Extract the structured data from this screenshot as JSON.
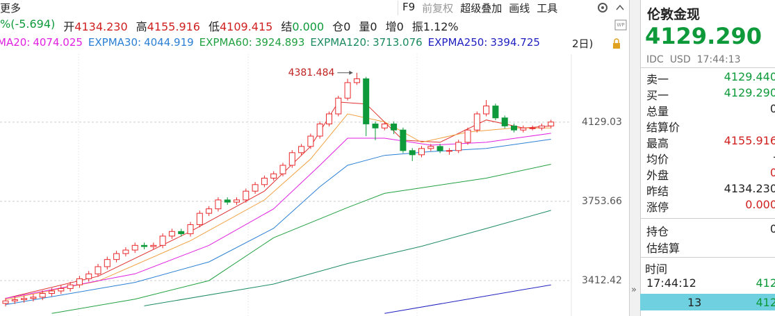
{
  "toolbar": {
    "more": "更多",
    "items": [
      "F9",
      "前复权",
      "超级叠加",
      "画线",
      "工具"
    ]
  },
  "quote": [
    {
      "value": "%(-5.694)"
    },
    {
      "label": "开",
      "value": "4134.230"
    },
    {
      "label": "高",
      "value": "4155.916"
    },
    {
      "label": "低",
      "value": "4109.415"
    },
    {
      "label": "结",
      "value": "0.000"
    },
    {
      "label": "仓",
      "value": "0"
    },
    {
      "label": "量",
      "value": "0"
    },
    {
      "label": "增",
      "value": "0"
    },
    {
      "label": "振",
      "value": "1.12%"
    }
  ],
  "legend_tail": "2日)",
  "chart_data": {
    "type": "candlestick",
    "open": [
      3320,
      3330,
      3335,
      3340,
      3345,
      3360,
      3370,
      3380,
      3395,
      3420,
      3440,
      3470,
      3500,
      3525,
      3540,
      3560,
      3555,
      3560,
      3600,
      3620,
      3610,
      3650,
      3700,
      3720,
      3760,
      3750,
      3760,
      3800,
      3830,
      3860,
      3880,
      3920,
      3980,
      4010,
      4060,
      4120,
      4170,
      4250,
      4330,
      4350,
      4120,
      4100,
      4120,
      4090,
      3990,
      3970,
      4000,
      4010,
      3990,
      3990,
      4030,
      4090,
      4170,
      4210,
      4150,
      4110,
      4090,
      4100,
      4100,
      4110
    ],
    "high": [
      3342,
      3347,
      3352,
      3357,
      3372,
      3382,
      3392,
      3407,
      3432,
      3452,
      3482,
      3512,
      3537,
      3552,
      3572,
      3572,
      3572,
      3612,
      3632,
      3632,
      3662,
      3712,
      3732,
      3772,
      3772,
      3772,
      3812,
      3842,
      3872,
      3892,
      3932,
      3992,
      4022,
      4072,
      4132,
      4182,
      4262,
      4350,
      4381.484,
      4360,
      4132,
      4132,
      4132,
      4102,
      4002,
      4012,
      4022,
      4022,
      4002,
      4042,
      4102,
      4182,
      4240,
      4222,
      4162,
      4122,
      4112,
      4112,
      4122,
      4141
    ],
    "low": [
      3308,
      3318,
      3323,
      3328,
      3333,
      3348,
      3358,
      3368,
      3383,
      3408,
      3428,
      3458,
      3488,
      3513,
      3528,
      3543,
      3543,
      3548,
      3588,
      3598,
      3598,
      3638,
      3688,
      3708,
      3738,
      3738,
      3748,
      3788,
      3818,
      3848,
      3868,
      3908,
      3968,
      3998,
      4048,
      4108,
      4158,
      4238,
      4318,
      4060,
      4040,
      4088,
      4070,
      3978,
      3940,
      3958,
      3988,
      3978,
      3970,
      3978,
      4018,
      4078,
      4158,
      4138,
      4098,
      4078,
      4078,
      4088,
      4088,
      4098
    ],
    "close": [
      3330,
      3335,
      3340,
      3345,
      3360,
      3370,
      3380,
      3395,
      3420,
      3440,
      3470,
      3500,
      3525,
      3540,
      3560,
      3555,
      3560,
      3600,
      3620,
      3610,
      3650,
      3700,
      3720,
      3760,
      3750,
      3760,
      3800,
      3830,
      3860,
      3880,
      3920,
      3980,
      4010,
      4060,
      4120,
      4170,
      4250,
      4330,
      4350,
      4120,
      4100,
      4120,
      4090,
      3990,
      3970,
      4000,
      4010,
      3990,
      3990,
      4030,
      4090,
      4170,
      4210,
      4150,
      4110,
      4090,
      4100,
      4100,
      4110,
      4129.29
    ],
    "up_color": "#e8282b",
    "down_color": "#0e9a3a",
    "ylim": [
      3270,
      4436
    ],
    "log_y": true,
    "yticks": [
      3412.42,
      3753.66,
      4129.03
    ],
    "grid": true,
    "lines": [
      {
        "color": "#e03030",
        "x": [
          0,
          10,
          20,
          28,
          33,
          36,
          39,
          43,
          47,
          52,
          56,
          59
        ],
        "values": [
          3340,
          3430,
          3620,
          3800,
          4010,
          4230,
          4220,
          4040,
          4030,
          4140,
          4100,
          4110
        ]
      },
      {
        "color": "#f0a040",
        "x": [
          0,
          10,
          20,
          28,
          33,
          37,
          41,
          45,
          50,
          55,
          59
        ],
        "values": [
          3335,
          3410,
          3580,
          3760,
          3950,
          4170,
          4130,
          4030,
          4080,
          4100,
          4100
        ]
      },
      {
        "name": "MA20:",
        "color": "#e020e0",
        "x": [
          0,
          14,
          22,
          29,
          34,
          37,
          41,
          46,
          52,
          59
        ],
        "values": [
          3340,
          3440,
          3560,
          3720,
          3920,
          4050,
          4050,
          4016,
          4030,
          4074.025
        ]
      },
      {
        "name": "EXPMA30:",
        "color": "#2a7fd4",
        "x": [
          0,
          14,
          22,
          29,
          34,
          37,
          41,
          46,
          52,
          59
        ],
        "values": [
          3315,
          3405,
          3490,
          3634,
          3820,
          3920,
          3967,
          3985,
          4000,
          4044.919
        ]
      },
      {
        "name": "EXPMA60:",
        "color": "#20a040",
        "x": [
          5,
          14,
          22,
          29,
          37,
          41,
          52,
          59
        ],
        "values": [
          3280,
          3337,
          3412,
          3593,
          3726,
          3790,
          3860,
          3924.893
        ]
      },
      {
        "name": "EXPMA120:",
        "color": "#1a8a60",
        "x": [
          15,
          29,
          37,
          45,
          52,
          59
        ],
        "values": [
          3310,
          3398,
          3483,
          3556,
          3633,
          3713.076
        ]
      },
      {
        "name": "EXPMA250:",
        "color": "#2020c0",
        "x": [
          41,
          50,
          59
        ],
        "values": [
          3280,
          3337,
          3394.725
        ]
      }
    ]
  },
  "panel": {
    "title": "伦敦金现",
    "price": "4129.290",
    "meta": [
      "IDC",
      "USD",
      "17:44:13"
    ],
    "rows": [
      [
        "卖一",
        "4129.440"
      ],
      [
        "买一",
        "4129.290"
      ],
      [
        "总量",
        "0"
      ],
      [
        "结算价"
      ],
      [
        "最高",
        "4155.916"
      ],
      [
        "均价",
        "-"
      ],
      [
        "外盘",
        "0"
      ],
      [
        "昨结",
        "4134.230"
      ],
      [
        "涨停",
        "0.000"
      ]
    ],
    "rows2": [
      [
        "持仓",
        "0"
      ],
      [
        "估结算"
      ]
    ],
    "trades": {
      "header": "时间",
      "rows": [
        [
          "17:44:12",
          "412"
        ],
        [
          "13",
          "412"
        ]
      ]
    }
  }
}
